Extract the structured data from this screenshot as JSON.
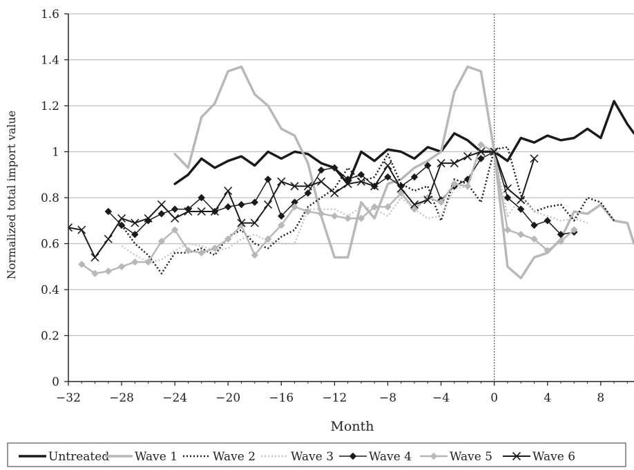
{
  "chart_data": {
    "type": "line",
    "title": "",
    "xlabel": "Month",
    "ylabel": "Normalized total import value",
    "xlim": [
      -32,
      10.5
    ],
    "ylim": [
      0,
      1.6
    ],
    "x_ticks": [
      -32,
      -28,
      -24,
      -20,
      -16,
      -12,
      -8,
      -4,
      0,
      4,
      8
    ],
    "x_tick_labels": [
      "−32",
      "−28",
      "−24",
      "−20",
      "−16",
      "−12",
      "−8",
      "−4",
      "0",
      "4",
      "8"
    ],
    "y_ticks": [
      0,
      0.2,
      0.4,
      0.6,
      0.8,
      1,
      1.2,
      1.4,
      1.6
    ],
    "y_tick_labels": [
      "0",
      "0.2",
      "0.4",
      "0.6",
      "0.8",
      "1",
      "1.2",
      "1.4",
      "1.6"
    ],
    "grid": "horizontal",
    "reference_line_x": 0,
    "legend_position": "bottom",
    "series": [
      {
        "name": "Untreated",
        "style": {
          "color": "#1a1a1a",
          "width": 3.5,
          "dash": "",
          "marker": "none"
        },
        "x": [
          -24,
          -23,
          -22,
          -21,
          -20,
          -19,
          -18,
          -17,
          -16,
          -15,
          -14,
          -13,
          -12,
          -11,
          -10,
          -9,
          -8,
          -7,
          -6,
          -5,
          -4,
          -3,
          -2,
          -1,
          0,
          1,
          2,
          3,
          4,
          5,
          6,
          7,
          8,
          9,
          10,
          10.5
        ],
        "y": [
          0.86,
          0.9,
          0.97,
          0.93,
          0.96,
          0.98,
          0.94,
          1.0,
          0.97,
          1.0,
          0.99,
          0.95,
          0.93,
          0.86,
          1.0,
          0.96,
          1.01,
          1.0,
          0.97,
          1.02,
          1.0,
          1.08,
          1.05,
          1.0,
          1.0,
          0.96,
          1.06,
          1.04,
          1.07,
          1.05,
          1.06,
          1.1,
          1.06,
          1.22,
          1.12,
          1.08
        ]
      },
      {
        "name": "Wave 1",
        "style": {
          "color": "#b8b8b8",
          "width": 3.5,
          "dash": "",
          "marker": "none"
        },
        "x": [
          -24,
          -23,
          -22,
          -21,
          -20,
          -19,
          -18,
          -17,
          -16,
          -15,
          -14,
          -13,
          -12,
          -11,
          -10,
          -9,
          -8,
          -7,
          -6,
          -5,
          -4,
          -3,
          -2,
          -1,
          0,
          1,
          2,
          3,
          4,
          5,
          6,
          7,
          8,
          9,
          10,
          10.5
        ],
        "y": [
          0.99,
          0.93,
          1.15,
          1.21,
          1.35,
          1.37,
          1.25,
          1.2,
          1.1,
          1.07,
          0.95,
          0.72,
          0.54,
          0.54,
          0.78,
          0.71,
          0.86,
          0.88,
          0.93,
          0.96,
          1.0,
          1.26,
          1.37,
          1.35,
          1.0,
          0.5,
          0.45,
          0.54,
          0.56,
          0.62,
          0.74,
          0.73,
          0.77,
          0.7,
          0.69,
          0.6
        ]
      },
      {
        "name": "Wave 2",
        "style": {
          "color": "#1a1a1a",
          "width": 2.5,
          "dash": "2 3",
          "marker": "none"
        },
        "x": [
          -28,
          -27,
          -26,
          -25,
          -24,
          -23,
          -22,
          -21,
          -20,
          -19,
          -18,
          -17,
          -16,
          -15,
          -14,
          -13,
          -12,
          -11,
          -10,
          -9,
          -8,
          -7,
          -6,
          -5,
          -4,
          -3,
          -2,
          -1,
          0,
          1,
          2,
          3,
          4,
          5,
          6,
          7,
          8,
          9
        ],
        "y": [
          0.68,
          0.6,
          0.55,
          0.47,
          0.56,
          0.56,
          0.58,
          0.55,
          0.63,
          0.66,
          0.6,
          0.58,
          0.63,
          0.66,
          0.76,
          0.8,
          0.84,
          0.93,
          0.87,
          0.89,
          0.99,
          0.86,
          0.83,
          0.85,
          0.7,
          0.88,
          0.86,
          0.78,
          1.01,
          1.02,
          0.81,
          0.74,
          0.76,
          0.77,
          0.7,
          0.8,
          0.78,
          0.7
        ]
      },
      {
        "name": "Wave 3",
        "style": {
          "color": "#c4c4c4",
          "width": 2.5,
          "dash": "2 3",
          "marker": "none"
        },
        "x": [
          -28,
          -27,
          -26,
          -25,
          -24,
          -23,
          -22,
          -21,
          -20,
          -19,
          -18,
          -17,
          -16,
          -15,
          -14,
          -13,
          -12,
          -11,
          -10,
          -9,
          -8,
          -7,
          -6,
          -5,
          -4,
          -3,
          -2,
          -1,
          0,
          1,
          2,
          3,
          4,
          5,
          6,
          7
        ],
        "y": [
          0.59,
          0.55,
          0.52,
          0.53,
          0.57,
          0.6,
          0.59,
          0.57,
          0.58,
          0.62,
          0.64,
          0.61,
          0.6,
          0.6,
          0.75,
          0.75,
          0.75,
          0.72,
          0.76,
          0.75,
          0.72,
          0.8,
          0.75,
          0.71,
          0.72,
          0.84,
          0.85,
          1.0,
          1.0,
          0.72,
          0.8,
          0.74,
          0.72,
          0.7,
          0.71,
          0.69
        ]
      },
      {
        "name": "Wave 4",
        "style": {
          "color": "#1a1a1a",
          "width": 1.5,
          "dash": "",
          "marker": "diamond",
          "marker_fill": "#1a1a1a"
        },
        "x": [
          -29,
          -28,
          -27,
          -26,
          -25,
          -24,
          -23,
          -22,
          -21,
          -20,
          -19,
          -18,
          -17,
          -16,
          -15,
          -14,
          -13,
          -12,
          -11,
          -10,
          -9,
          -8,
          -7,
          -6,
          -5,
          -4,
          -3,
          -2,
          -1,
          0,
          1,
          2,
          3,
          4,
          5,
          6
        ],
        "y": [
          0.74,
          0.68,
          0.64,
          0.7,
          0.73,
          0.75,
          0.75,
          0.8,
          0.74,
          0.76,
          0.77,
          0.78,
          0.88,
          0.72,
          0.78,
          0.82,
          0.92,
          0.93,
          0.88,
          0.9,
          0.85,
          0.89,
          0.85,
          0.89,
          0.94,
          0.79,
          0.85,
          0.88,
          0.97,
          1.0,
          0.8,
          0.75,
          0.68,
          0.7,
          0.64,
          0.65
        ]
      },
      {
        "name": "Wave 5",
        "style": {
          "color": "#b8b8b8",
          "width": 2.5,
          "dash": "",
          "marker": "diamond",
          "marker_fill": "#b8b8b8"
        },
        "x": [
          -31,
          -30,
          -29,
          -28,
          -27,
          -26,
          -25,
          -24,
          -23,
          -22,
          -21,
          -20,
          -19,
          -18,
          -17,
          -16,
          -15,
          -14,
          -13,
          -12,
          -11,
          -10,
          -9,
          -8,
          -7,
          -6,
          -5,
          -4,
          -3,
          -2,
          -1,
          0,
          1,
          2,
          3,
          4,
          5,
          6
        ],
        "y": [
          0.51,
          0.47,
          0.48,
          0.5,
          0.52,
          0.52,
          0.61,
          0.66,
          0.57,
          0.56,
          0.58,
          0.62,
          0.68,
          0.55,
          0.62,
          0.68,
          0.76,
          0.74,
          0.73,
          0.72,
          0.71,
          0.71,
          0.76,
          0.76,
          0.82,
          0.75,
          0.8,
          0.78,
          0.86,
          0.85,
          1.03,
          1.0,
          0.66,
          0.64,
          0.62,
          0.57,
          0.61,
          0.66
        ]
      },
      {
        "name": "Wave 6",
        "style": {
          "color": "#1a1a1a",
          "width": 2.0,
          "dash": "",
          "marker": "x",
          "marker_fill": "#1a1a1a"
        },
        "x": [
          -32,
          -31,
          -30,
          -29,
          -28,
          -27,
          -26,
          -25,
          -24,
          -23,
          -22,
          -21,
          -20,
          -19,
          -18,
          -17,
          -16,
          -15,
          -14,
          -13,
          -12,
          -11,
          -10,
          -9,
          -8,
          -7,
          -6,
          -5,
          -4,
          -3,
          -2,
          -1,
          0,
          1,
          2,
          3
        ],
        "y": [
          0.67,
          0.66,
          0.54,
          0.62,
          0.71,
          0.69,
          0.71,
          0.77,
          0.71,
          0.74,
          0.74,
          0.74,
          0.83,
          0.69,
          0.69,
          0.77,
          0.87,
          0.85,
          0.85,
          0.87,
          0.82,
          0.86,
          0.87,
          0.85,
          0.94,
          0.84,
          0.77,
          0.79,
          0.95,
          0.95,
          0.98,
          1.0,
          1.0,
          0.84,
          0.79,
          0.97
        ]
      }
    ]
  }
}
